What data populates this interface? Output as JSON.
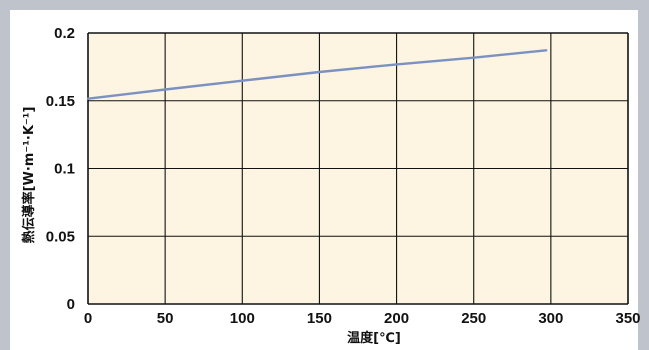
{
  "chart_data": {
    "type": "line",
    "title": "",
    "xlabel": "温度[℃]",
    "ylabel": "熱伝導率[W·m⁻¹·K⁻¹]",
    "xlim": [
      0,
      350
    ],
    "ylim": [
      0,
      0.2
    ],
    "x_ticks": [
      0,
      50,
      100,
      150,
      200,
      250,
      300,
      350
    ],
    "y_ticks": [
      0,
      0.05,
      0.1,
      0.15,
      0.2
    ],
    "x_tick_labels": [
      "0",
      "50",
      "100",
      "150",
      "200",
      "250",
      "300",
      "350"
    ],
    "y_tick_labels": [
      "0",
      "0.05",
      "0.1",
      "0.15",
      "0.2"
    ],
    "grid": true,
    "series": [
      {
        "x": [
          0,
          50,
          100,
          150,
          200,
          250,
          297
        ],
        "y": [
          0.1515,
          0.1583,
          0.1648,
          0.1712,
          0.1768,
          0.1818,
          0.1872
        ],
        "color": "#7a91c2"
      }
    ],
    "colors": {
      "plot_background": "#fdf4e1",
      "frame": "#bfc3cc",
      "grid": "#111111"
    }
  }
}
